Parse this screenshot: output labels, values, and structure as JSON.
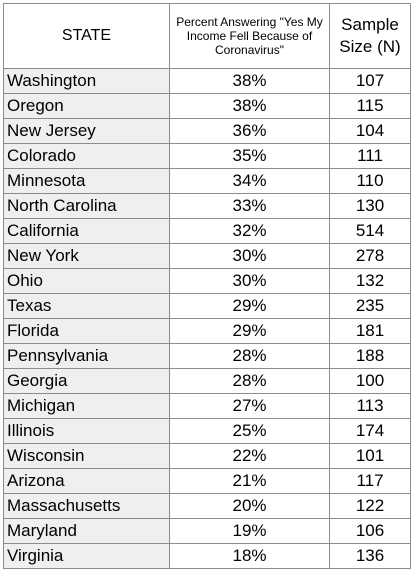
{
  "chart_data": {
    "type": "table",
    "columns": [
      "STATE",
      "Percent Answering \"Yes My Income Fell Because of Coronavirus\"",
      "Sample Size (N)"
    ],
    "rows": [
      {
        "state": "Washington",
        "percent": "38%",
        "n": "107"
      },
      {
        "state": "Oregon",
        "percent": "38%",
        "n": "115"
      },
      {
        "state": "New Jersey",
        "percent": "36%",
        "n": "104"
      },
      {
        "state": "Colorado",
        "percent": "35%",
        "n": "111"
      },
      {
        "state": "Minnesota",
        "percent": "34%",
        "n": "110"
      },
      {
        "state": "North Carolina",
        "percent": "33%",
        "n": "130"
      },
      {
        "state": "California",
        "percent": "32%",
        "n": "514"
      },
      {
        "state": "New York",
        "percent": "30%",
        "n": "278"
      },
      {
        "state": "Ohio",
        "percent": "30%",
        "n": "132"
      },
      {
        "state": "Texas",
        "percent": "29%",
        "n": "235"
      },
      {
        "state": "Florida",
        "percent": "29%",
        "n": "181"
      },
      {
        "state": "Pennsylvania",
        "percent": "28%",
        "n": "188"
      },
      {
        "state": "Georgia",
        "percent": "28%",
        "n": "100"
      },
      {
        "state": "Michigan",
        "percent": "27%",
        "n": "113"
      },
      {
        "state": "Illinois",
        "percent": "25%",
        "n": "174"
      },
      {
        "state": "Wisconsin",
        "percent": "22%",
        "n": "101"
      },
      {
        "state": "Arizona",
        "percent": "21%",
        "n": "117"
      },
      {
        "state": "Massachusetts",
        "percent": "20%",
        "n": "122"
      },
      {
        "state": "Maryland",
        "percent": "19%",
        "n": "106"
      },
      {
        "state": "Virginia",
        "percent": "18%",
        "n": "136"
      }
    ]
  },
  "colors": {
    "state_cell_bg": "#efefef",
    "border": "#8c8c8c"
  }
}
